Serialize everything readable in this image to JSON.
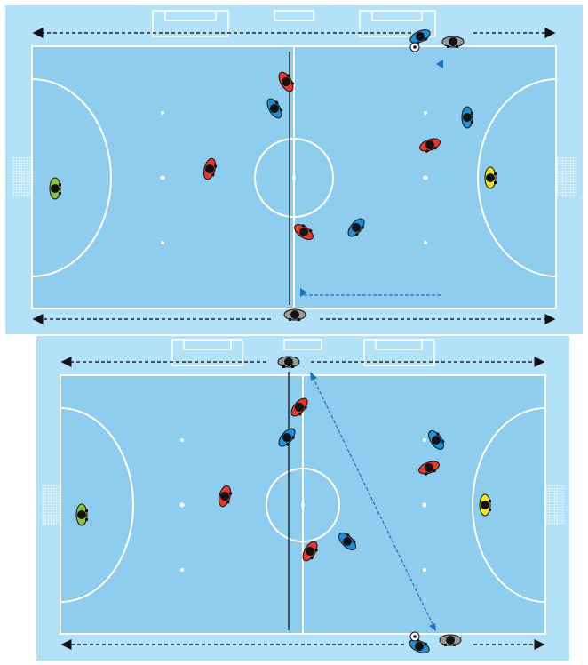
{
  "colors": {
    "surround": "#b3e2f8",
    "court": "#8fcdee",
    "lines": "#ffffff",
    "pass_arrow": "#1a73c0",
    "run_arrow": "#222222"
  },
  "teams": {
    "red": {
      "color": "#e8382a"
    },
    "blue": {
      "color": "#1f8fd8"
    },
    "green_keeper": {
      "color": "#8cc63f"
    },
    "yellow_keeper": {
      "color": "#f5e61c"
    },
    "neutral": {
      "color": "#9a9a9a"
    }
  },
  "diagrams": [
    {
      "panel": 1,
      "players": [
        "blue",
        "neutral",
        "red",
        "blue",
        "red",
        "green_keeper",
        "blue",
        "red",
        "yellow_keeper",
        "red",
        "blue",
        "neutral"
      ],
      "ball": true,
      "pass_arrows": 2
    },
    {
      "panel": 2,
      "players": [
        "neutral",
        "red",
        "blue",
        "red",
        "green_keeper",
        "blue",
        "red",
        "yellow_keeper",
        "red",
        "blue",
        "blue",
        "neutral"
      ],
      "ball": true,
      "pass_arrows": 1
    }
  ]
}
